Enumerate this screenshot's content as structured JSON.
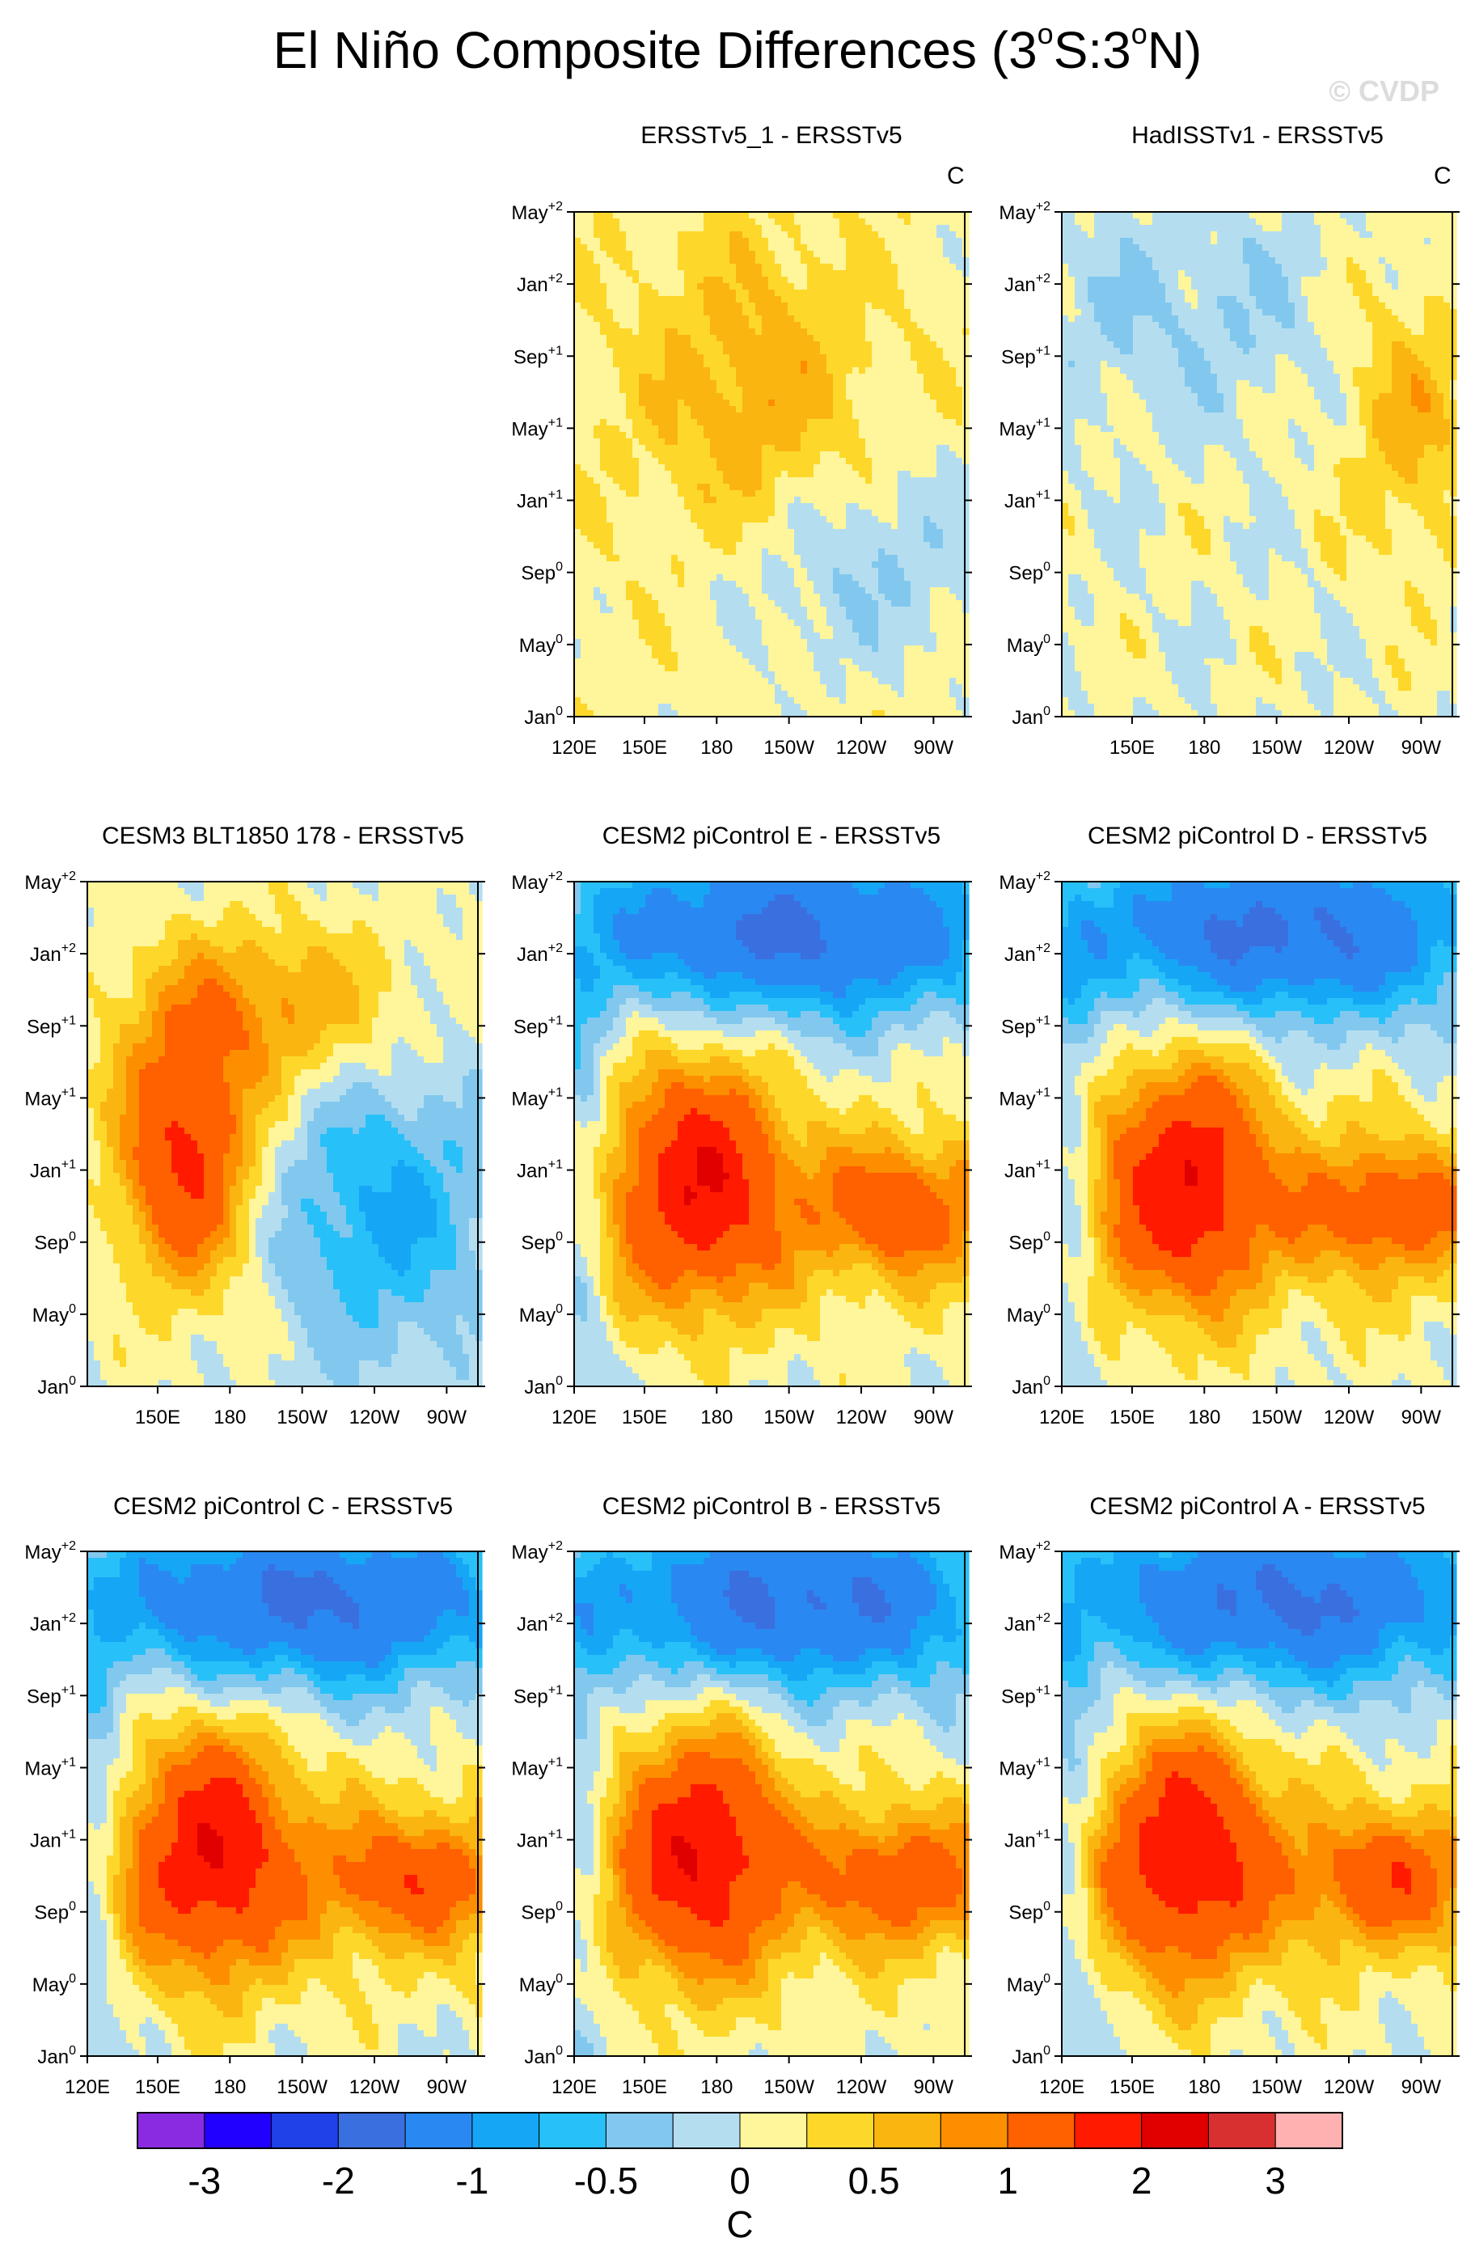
{
  "title": {
    "text": "El Niño Composite Differences (3",
    "sup1": "o",
    "mid": "S:3",
    "sup2": "o",
    "end": "N)"
  },
  "watermark": "© CVDP",
  "chart_data": [
    {
      "type": "heatmap",
      "title": "ERSSTv5_1 - ERSSTv5",
      "unit": "C",
      "y_ticks": [
        "May+2",
        "Jan+2",
        "Sep+1",
        "May+1",
        "Jan+1",
        "Sep0",
        "May0",
        "Jan0"
      ],
      "x_ticks": [
        "120E",
        "150E",
        "180",
        "150W",
        "120W",
        "90W"
      ]
    },
    {
      "type": "heatmap",
      "title": "HadISSTv1 - ERSSTv5",
      "unit": "C",
      "y_ticks": [
        "May+2",
        "Jan+2",
        "Sep+1",
        "May+1",
        "Jan+1",
        "Sep0",
        "May0",
        "Jan0"
      ],
      "x_ticks": [
        "150E",
        "180",
        "150W",
        "120W",
        "90W"
      ]
    },
    {
      "type": "heatmap",
      "title": "CESM3 BLT1850 178 - ERSSTv5",
      "y_ticks": [
        "May+2",
        "Jan+2",
        "Sep+1",
        "May+1",
        "Jan+1",
        "Sep0",
        "May0",
        "Jan0"
      ],
      "x_ticks": [
        "150E",
        "180",
        "150W",
        "120W",
        "90W"
      ]
    },
    {
      "type": "heatmap",
      "title": "CESM2 piControl E - ERSSTv5",
      "y_ticks": [
        "May+2",
        "Jan+2",
        "Sep+1",
        "May+1",
        "Jan+1",
        "Sep0",
        "May0",
        "Jan0"
      ],
      "x_ticks": [
        "120E",
        "150E",
        "180",
        "150W",
        "120W",
        "90W"
      ]
    },
    {
      "type": "heatmap",
      "title": "CESM2 piControl D - ERSSTv5",
      "y_ticks": [
        "May+2",
        "Jan+2",
        "Sep+1",
        "May+1",
        "Jan+1",
        "Sep0",
        "May0",
        "Jan0"
      ],
      "x_ticks": [
        "120E",
        "150E",
        "180",
        "150W",
        "120W",
        "90W"
      ]
    },
    {
      "type": "heatmap",
      "title": "CESM2 piControl C - ERSSTv5",
      "y_ticks": [
        "May+2",
        "Jan+2",
        "Sep+1",
        "May+1",
        "Jan+1",
        "Sep0",
        "May0",
        "Jan0"
      ],
      "x_ticks": [
        "120E",
        "150E",
        "180",
        "150W",
        "120W",
        "90W"
      ]
    },
    {
      "type": "heatmap",
      "title": "CESM2 piControl B - ERSSTv5",
      "y_ticks": [
        "May+2",
        "Jan+2",
        "Sep+1",
        "May+1",
        "Jan+1",
        "Sep0",
        "May0",
        "Jan0"
      ],
      "x_ticks": [
        "120E",
        "150E",
        "180",
        "150W",
        "120W",
        "90W"
      ]
    },
    {
      "type": "heatmap",
      "title": "CESM2 piControl A - ERSSTv5",
      "y_ticks": [
        "May+2",
        "Jan+2",
        "Sep+1",
        "May+1",
        "Jan+1",
        "Sep0",
        "May0",
        "Jan0"
      ],
      "x_ticks": [
        "120E",
        "150E",
        "180",
        "150W",
        "120W",
        "90W"
      ]
    }
  ],
  "colorbar": {
    "colors": [
      "#8a2be2",
      "#2200ff",
      "#2040e8",
      "#3a6fe0",
      "#2a88f2",
      "#16a6f6",
      "#28c0f8",
      "#82c8ee",
      "#b4def0",
      "#fff59a",
      "#fdd82a",
      "#fbb510",
      "#fc8e00",
      "#ff6000",
      "#ff1a00",
      "#e00000",
      "#d83030",
      "#ffb0b0"
    ],
    "labels": [
      "-3",
      "-2",
      "-1",
      "-0.5",
      "0",
      "0.5",
      "1",
      "2",
      "3"
    ],
    "unit": "C"
  }
}
